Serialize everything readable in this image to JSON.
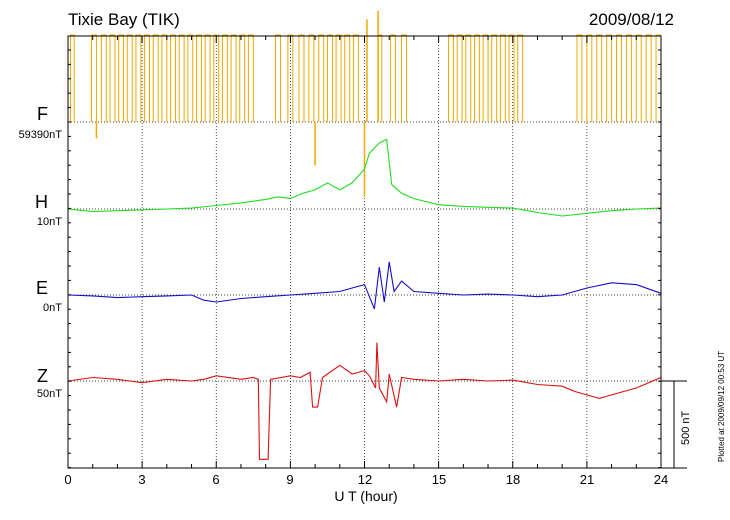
{
  "header": {
    "station": "Tixie Bay (TIK)",
    "date": "2009/08/12"
  },
  "plotted_note": "Plotted at 2009/09/12 00:53 UT",
  "scale": {
    "label": "500 nT",
    "value_nT": 500
  },
  "chart_data": {
    "type": "line",
    "xlabel": "U T (hour)",
    "xlim": [
      0,
      24
    ],
    "xticks": [
      "0",
      "3",
      "6",
      "9",
      "12",
      "15",
      "18",
      "21",
      "24"
    ],
    "grid": true,
    "series": [
      {
        "name": "F",
        "baseline_label": "59390nT",
        "color": "#f0a800",
        "baseline_nT": 59390,
        "style": "square-wave",
        "pulses": [
          [
            0.1,
            0.25
          ],
          [
            0.95,
            1.15
          ],
          [
            1.35,
            1.55
          ],
          [
            1.7,
            1.9
          ],
          [
            2.05,
            2.25
          ],
          [
            2.4,
            2.6
          ],
          [
            2.75,
            2.95
          ],
          [
            3.1,
            3.3
          ],
          [
            3.45,
            3.65
          ],
          [
            3.8,
            4.0
          ],
          [
            4.15,
            4.35
          ],
          [
            4.5,
            4.7
          ],
          [
            4.85,
            5.05
          ],
          [
            5.2,
            5.4
          ],
          [
            5.55,
            5.75
          ],
          [
            5.9,
            6.1
          ],
          [
            6.25,
            6.45
          ],
          [
            6.6,
            6.8
          ],
          [
            6.95,
            7.15
          ],
          [
            7.3,
            7.5
          ],
          [
            8.4,
            8.6
          ],
          [
            8.9,
            9.1
          ],
          [
            9.35,
            9.55
          ],
          [
            9.75,
            9.95
          ],
          [
            10.15,
            10.35
          ],
          [
            10.5,
            10.7
          ],
          [
            10.85,
            11.05
          ],
          [
            11.2,
            11.4
          ],
          [
            11.55,
            11.75
          ],
          [
            12.55,
            12.7
          ],
          [
            13.05,
            13.25
          ],
          [
            13.5,
            13.7
          ],
          [
            15.4,
            15.6
          ],
          [
            15.75,
            15.95
          ],
          [
            16.1,
            16.3
          ],
          [
            16.45,
            16.65
          ],
          [
            16.8,
            17.0
          ],
          [
            17.15,
            17.35
          ],
          [
            17.5,
            17.7
          ],
          [
            17.85,
            18.05
          ],
          [
            18.2,
            18.4
          ],
          [
            20.6,
            20.8
          ],
          [
            21.0,
            21.2
          ],
          [
            21.4,
            21.6
          ],
          [
            21.8,
            22.0
          ],
          [
            22.2,
            22.4
          ],
          [
            22.6,
            22.8
          ],
          [
            23.0,
            23.2
          ],
          [
            23.4,
            23.6
          ],
          [
            23.8,
            24.0
          ]
        ],
        "pulse_high_nT": 500,
        "spikes": [
          {
            "x": 1.15,
            "y": -95
          },
          {
            "x": 10.0,
            "y": -250
          },
          {
            "x": 12.0,
            "y": -430
          },
          {
            "x": 12.1,
            "y": 590
          },
          {
            "x": 12.55,
            "y": 640
          }
        ]
      },
      {
        "name": "H",
        "baseline_label": "10nT",
        "color": "#22dd22",
        "baseline_nT": 10,
        "x": [
          0,
          1,
          2,
          3,
          4,
          5,
          6,
          7,
          8,
          8.5,
          9,
          9.5,
          10,
          10.5,
          11,
          11.5,
          12,
          12.2,
          12.6,
          12.9,
          13.1,
          13.5,
          14,
          15,
          16,
          17,
          18,
          19,
          20,
          21,
          22,
          23,
          24
        ],
        "y": [
          0,
          -15,
          -10,
          -5,
          0,
          5,
          20,
          35,
          55,
          70,
          60,
          90,
          110,
          150,
          110,
          150,
          230,
          320,
          380,
          400,
          140,
          90,
          60,
          25,
          15,
          10,
          5,
          -20,
          -40,
          -25,
          -10,
          0,
          5
        ]
      },
      {
        "name": "E",
        "baseline_label": "0nT",
        "color": "#1010cc",
        "baseline_nT": 0,
        "x": [
          0,
          1,
          2,
          3,
          4,
          5,
          5.5,
          6,
          7,
          8,
          9,
          10,
          11,
          11.5,
          12,
          12.4,
          12.6,
          12.8,
          13.0,
          13.2,
          13.5,
          14,
          15,
          16,
          17,
          18,
          19,
          20,
          21,
          22,
          23,
          24
        ],
        "y": [
          0,
          -5,
          -15,
          -10,
          -5,
          0,
          -30,
          -40,
          -20,
          -10,
          0,
          10,
          20,
          40,
          60,
          -80,
          160,
          -40,
          190,
          20,
          80,
          20,
          10,
          0,
          5,
          0,
          -10,
          0,
          40,
          70,
          60,
          10
        ]
      },
      {
        "name": "Z",
        "baseline_label": "50nT",
        "color": "#dd1111",
        "baseline_nT": 50,
        "x": [
          0,
          1,
          2,
          3,
          4,
          5,
          5.5,
          6,
          7,
          7.5,
          7.7,
          7.75,
          8.1,
          8.2,
          9,
          9.4,
          9.8,
          9.9,
          10.1,
          10.3,
          11,
          11.5,
          12,
          12.2,
          12.45,
          12.5,
          12.6,
          12.9,
          13.0,
          13.3,
          13.5,
          14,
          15,
          16,
          17,
          18,
          19,
          20,
          20.5,
          21,
          21.5,
          22,
          23,
          24
        ],
        "y": [
          0,
          20,
          10,
          -10,
          10,
          0,
          10,
          30,
          10,
          20,
          10,
          -450,
          -450,
          10,
          30,
          20,
          50,
          -150,
          -150,
          20,
          90,
          40,
          60,
          30,
          -40,
          220,
          -40,
          -120,
          40,
          -150,
          20,
          10,
          0,
          10,
          0,
          5,
          -20,
          -30,
          -60,
          -80,
          -100,
          -80,
          -40,
          20
        ]
      }
    ]
  }
}
